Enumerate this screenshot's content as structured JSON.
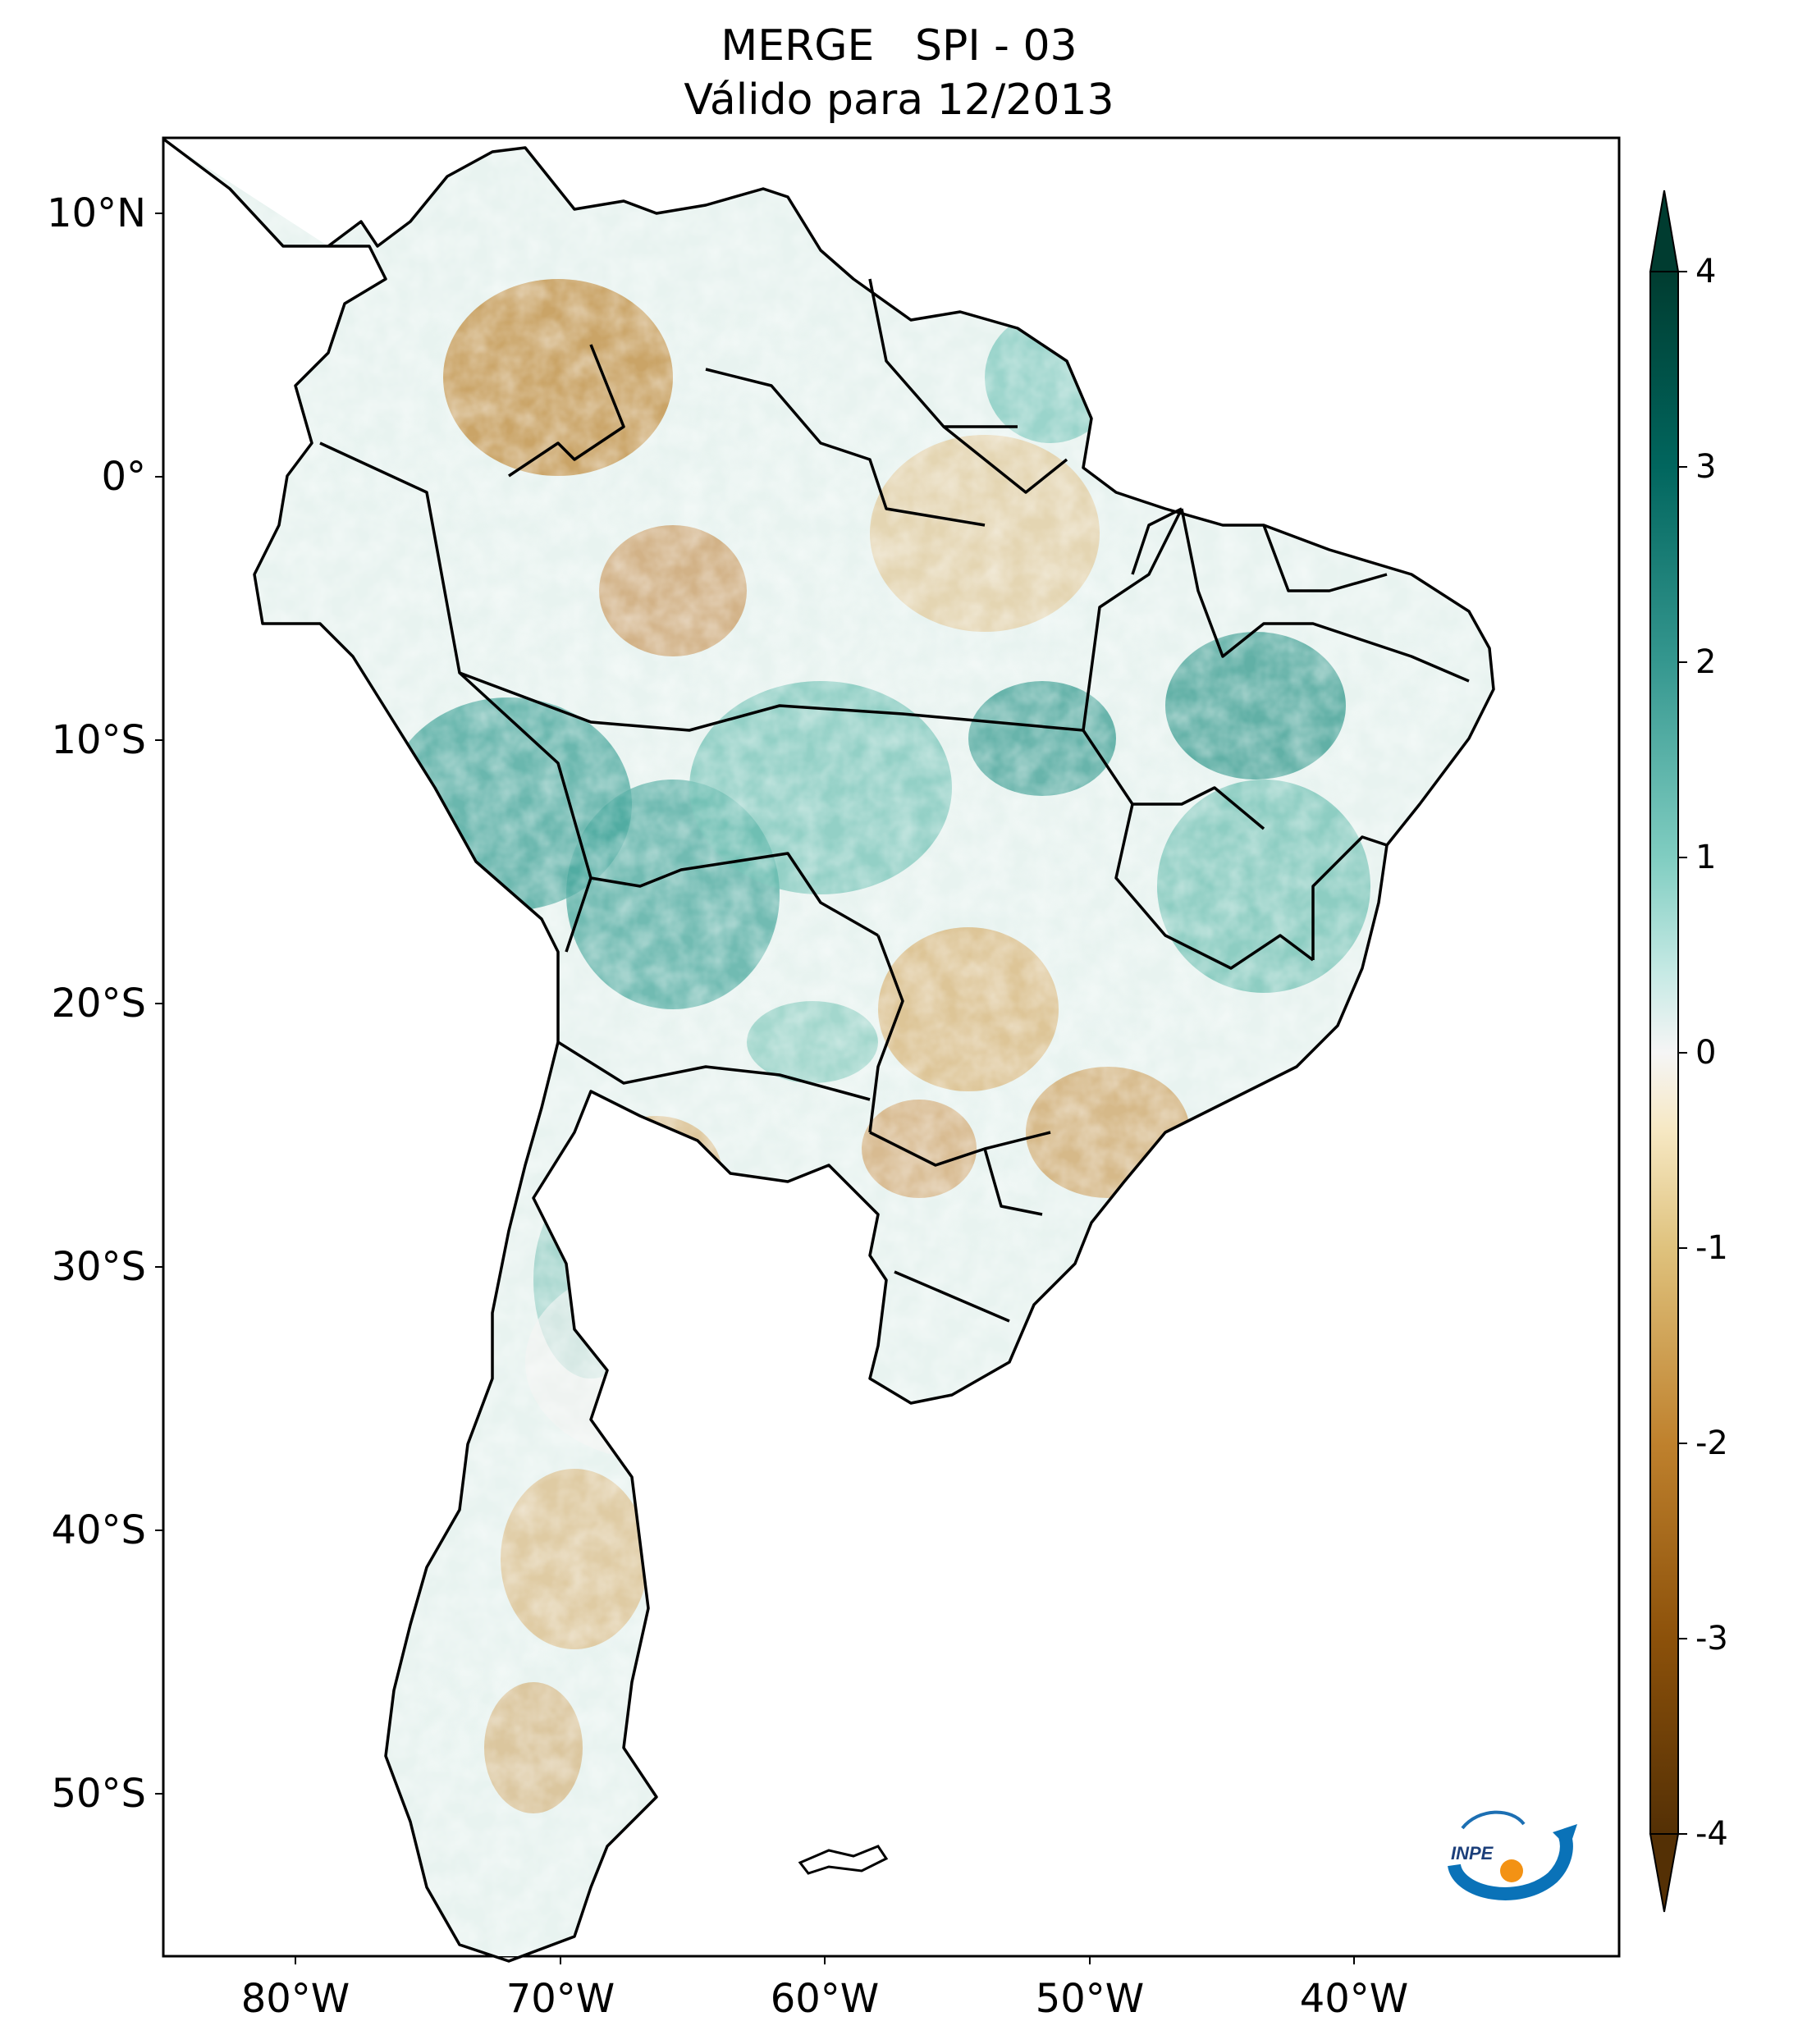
{
  "title": {
    "line1": "MERGE   SPI - 03",
    "line2": "Válido para 12/2013"
  },
  "map": {
    "lon_range": [
      -85,
      -30
    ],
    "lat_range": [
      -56,
      13
    ],
    "lon_ticks": [
      "80°W",
      "70°W",
      "60°W",
      "50°W",
      "40°W"
    ],
    "lat_ticks": [
      "10°N",
      "0°",
      "10°S",
      "20°S",
      "30°S",
      "40°S",
      "50°S"
    ],
    "variable": "SPI - 03",
    "source": "MERGE",
    "period": "12/2013"
  },
  "colorbar": {
    "ticks": [
      "4",
      "3",
      "2",
      "1",
      "0",
      "-1",
      "-2",
      "-3",
      "-4"
    ],
    "range": [
      -4,
      4
    ],
    "extend": "both",
    "colors": {
      "min": "#543005",
      "dry_strong": "#8c510a",
      "dry": "#bf812d",
      "dry_light": "#dfc27d",
      "dry_pale": "#f6e8c3",
      "neutral": "#f5f5f5",
      "wet_pale": "#c7eae5",
      "wet_light": "#80cdc1",
      "wet": "#35978f",
      "wet_strong": "#01665e",
      "max": "#003c30"
    }
  },
  "logo": {
    "text": "INPE",
    "icon": "inpe-logo-icon"
  }
}
